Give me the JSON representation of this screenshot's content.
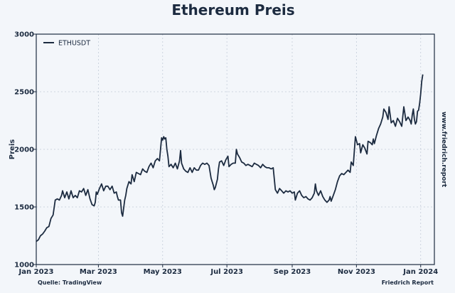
{
  "chart_data": {
    "type": "line",
    "title": "Ethereum Preis",
    "xlabel": "",
    "ylabel": "Preis",
    "ylim": [
      1000,
      3000
    ],
    "yticks": [
      1000,
      1500,
      2000,
      2500,
      3000
    ],
    "xticks": [
      {
        "label": "Jan 2023",
        "day": 0
      },
      {
        "label": "Mar 2023",
        "day": 59
      },
      {
        "label": "May 2023",
        "day": 120
      },
      {
        "label": "Jul 2023",
        "day": 181
      },
      {
        "label": "Sep 2023",
        "day": 243
      },
      {
        "label": "Nov 2023",
        "day": 304
      },
      {
        "label": "Jan 2024",
        "day": 365
      }
    ],
    "grid": true,
    "legend_position": "top-left",
    "series": [
      {
        "name": "ETHUSDT",
        "color": "#1c2b40",
        "points": [
          [
            0,
            1200
          ],
          [
            2,
            1215
          ],
          [
            4,
            1250
          ],
          [
            6,
            1265
          ],
          [
            8,
            1290
          ],
          [
            10,
            1320
          ],
          [
            12,
            1330
          ],
          [
            14,
            1400
          ],
          [
            16,
            1430
          ],
          [
            18,
            1560
          ],
          [
            20,
            1570
          ],
          [
            22,
            1560
          ],
          [
            24,
            1600
          ],
          [
            25,
            1640
          ],
          [
            27,
            1580
          ],
          [
            29,
            1630
          ],
          [
            31,
            1570
          ],
          [
            33,
            1640
          ],
          [
            35,
            1580
          ],
          [
            37,
            1600
          ],
          [
            39,
            1580
          ],
          [
            41,
            1640
          ],
          [
            43,
            1630
          ],
          [
            45,
            1660
          ],
          [
            47,
            1600
          ],
          [
            49,
            1650
          ],
          [
            51,
            1570
          ],
          [
            53,
            1520
          ],
          [
            55,
            1510
          ],
          [
            56,
            1540
          ],
          [
            57,
            1630
          ],
          [
            58,
            1610
          ],
          [
            60,
            1660
          ],
          [
            62,
            1700
          ],
          [
            64,
            1640
          ],
          [
            66,
            1680
          ],
          [
            68,
            1680
          ],
          [
            70,
            1650
          ],
          [
            72,
            1680
          ],
          [
            74,
            1620
          ],
          [
            76,
            1630
          ],
          [
            77,
            1590
          ],
          [
            78,
            1560
          ],
          [
            80,
            1560
          ],
          [
            81,
            1450
          ],
          [
            82,
            1420
          ],
          [
            84,
            1560
          ],
          [
            85,
            1600
          ],
          [
            86,
            1660
          ],
          [
            88,
            1720
          ],
          [
            90,
            1700
          ],
          [
            91,
            1780
          ],
          [
            93,
            1720
          ],
          [
            95,
            1800
          ],
          [
            97,
            1790
          ],
          [
            99,
            1780
          ],
          [
            101,
            1830
          ],
          [
            103,
            1810
          ],
          [
            105,
            1800
          ],
          [
            107,
            1850
          ],
          [
            109,
            1880
          ],
          [
            111,
            1840
          ],
          [
            113,
            1900
          ],
          [
            115,
            1920
          ],
          [
            117,
            1900
          ],
          [
            118,
            2000
          ],
          [
            119,
            2100
          ],
          [
            120,
            2080
          ],
          [
            121,
            2110
          ],
          [
            122,
            2090
          ],
          [
            123,
            2100
          ],
          [
            124,
            2000
          ],
          [
            125,
            1940
          ],
          [
            126,
            1850
          ],
          [
            128,
            1870
          ],
          [
            130,
            1840
          ],
          [
            132,
            1880
          ],
          [
            134,
            1830
          ],
          [
            136,
            1900
          ],
          [
            137,
            1990
          ],
          [
            138,
            1880
          ],
          [
            140,
            1830
          ],
          [
            142,
            1810
          ],
          [
            144,
            1800
          ],
          [
            146,
            1840
          ],
          [
            148,
            1800
          ],
          [
            150,
            1840
          ],
          [
            152,
            1820
          ],
          [
            154,
            1820
          ],
          [
            156,
            1860
          ],
          [
            158,
            1880
          ],
          [
            160,
            1870
          ],
          [
            162,
            1880
          ],
          [
            164,
            1860
          ],
          [
            166,
            1750
          ],
          [
            167,
            1720
          ],
          [
            168,
            1690
          ],
          [
            169,
            1650
          ],
          [
            170,
            1670
          ],
          [
            172,
            1740
          ],
          [
            173,
            1830
          ],
          [
            174,
            1890
          ],
          [
            176,
            1900
          ],
          [
            178,
            1860
          ],
          [
            180,
            1910
          ],
          [
            182,
            1940
          ],
          [
            183,
            1850
          ],
          [
            185,
            1870
          ],
          [
            187,
            1880
          ],
          [
            189,
            1880
          ],
          [
            190,
            2000
          ],
          [
            191,
            1960
          ],
          [
            193,
            1930
          ],
          [
            195,
            1890
          ],
          [
            197,
            1880
          ],
          [
            199,
            1860
          ],
          [
            201,
            1870
          ],
          [
            203,
            1860
          ],
          [
            205,
            1850
          ],
          [
            207,
            1880
          ],
          [
            209,
            1870
          ],
          [
            211,
            1860
          ],
          [
            213,
            1840
          ],
          [
            215,
            1870
          ],
          [
            217,
            1850
          ],
          [
            219,
            1840
          ],
          [
            221,
            1840
          ],
          [
            223,
            1830
          ],
          [
            225,
            1840
          ],
          [
            227,
            1650
          ],
          [
            229,
            1620
          ],
          [
            231,
            1660
          ],
          [
            233,
            1640
          ],
          [
            235,
            1620
          ],
          [
            237,
            1640
          ],
          [
            239,
            1630
          ],
          [
            241,
            1640
          ],
          [
            243,
            1620
          ],
          [
            245,
            1630
          ],
          [
            246,
            1560
          ],
          [
            248,
            1620
          ],
          [
            250,
            1640
          ],
          [
            252,
            1600
          ],
          [
            254,
            1580
          ],
          [
            256,
            1590
          ],
          [
            258,
            1570
          ],
          [
            260,
            1560
          ],
          [
            262,
            1580
          ],
          [
            264,
            1620
          ],
          [
            265,
            1700
          ],
          [
            266,
            1640
          ],
          [
            268,
            1600
          ],
          [
            270,
            1640
          ],
          [
            272,
            1590
          ],
          [
            274,
            1560
          ],
          [
            276,
            1540
          ],
          [
            278,
            1560
          ],
          [
            279,
            1590
          ],
          [
            280,
            1550
          ],
          [
            282,
            1600
          ],
          [
            284,
            1650
          ],
          [
            286,
            1720
          ],
          [
            288,
            1770
          ],
          [
            290,
            1790
          ],
          [
            292,
            1780
          ],
          [
            294,
            1800
          ],
          [
            296,
            1820
          ],
          [
            298,
            1800
          ],
          [
            299,
            1890
          ],
          [
            301,
            1860
          ],
          [
            303,
            2110
          ],
          [
            305,
            2040
          ],
          [
            307,
            2050
          ],
          [
            308,
            1970
          ],
          [
            310,
            2040
          ],
          [
            312,
            2010
          ],
          [
            314,
            1960
          ],
          [
            315,
            2070
          ],
          [
            317,
            2060
          ],
          [
            319,
            2040
          ],
          [
            320,
            2090
          ],
          [
            321,
            2050
          ],
          [
            323,
            2120
          ],
          [
            325,
            2180
          ],
          [
            327,
            2220
          ],
          [
            329,
            2280
          ],
          [
            330,
            2350
          ],
          [
            332,
            2320
          ],
          [
            334,
            2260
          ],
          [
            335,
            2370
          ],
          [
            337,
            2230
          ],
          [
            339,
            2250
          ],
          [
            341,
            2200
          ],
          [
            343,
            2270
          ],
          [
            345,
            2240
          ],
          [
            347,
            2200
          ],
          [
            349,
            2370
          ],
          [
            351,
            2250
          ],
          [
            353,
            2280
          ],
          [
            355,
            2250
          ],
          [
            356,
            2220
          ],
          [
            357,
            2300
          ],
          [
            358,
            2350
          ],
          [
            359,
            2260
          ],
          [
            360,
            2220
          ],
          [
            361,
            2240
          ],
          [
            362,
            2330
          ],
          [
            363,
            2340
          ],
          [
            364,
            2400
          ],
          [
            365,
            2480
          ],
          [
            366,
            2590
          ],
          [
            367,
            2650
          ]
        ]
      }
    ],
    "footer_left": "Quelle: TradingView",
    "footer_right": "Friedrich Report",
    "side_text": "www.friedrich.report"
  }
}
